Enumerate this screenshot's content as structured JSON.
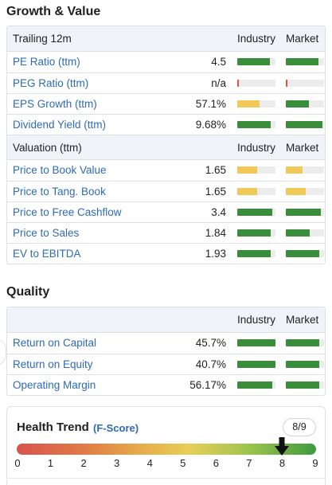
{
  "growth": {
    "title": "Growth & Value",
    "trailing": {
      "header": "Trailing 12m",
      "col_industry": "Industry",
      "col_market": "Market",
      "rows": [
        {
          "name": "PE Ratio (ttm)",
          "value": "4.5",
          "industry": 0.85,
          "market": 0.85,
          "industry_color": "#3a8d3a",
          "market_color": "#3a8d3a"
        },
        {
          "name": "PEG Ratio (ttm)",
          "value": "n/a",
          "industry": 0.05,
          "market": 0.05,
          "industry_color": "#d9534f",
          "market_color": "#d9534f"
        },
        {
          "name": "EPS Growth (ttm)",
          "value": "57.1%",
          "industry": 0.58,
          "market": 0.6,
          "industry_color": "#f1c959",
          "market_color": "#3a8d3a"
        },
        {
          "name": "Dividend Yield (ttm)",
          "value": "9.68%",
          "industry": 0.88,
          "market": 0.95,
          "industry_color": "#3a8d3a",
          "market_color": "#3a8d3a"
        }
      ]
    },
    "valuation": {
      "header": "Valuation (ttm)",
      "col_industry": "Industry",
      "col_market": "Market",
      "rows": [
        {
          "name": "Price to Book Value",
          "value": "1.65",
          "industry": 0.52,
          "market": 0.44,
          "industry_color": "#f1c959",
          "market_color": "#f1c959"
        },
        {
          "name": "Price to Tang. Book",
          "value": "1.65",
          "industry": 0.52,
          "market": 0.52,
          "industry_color": "#f1c959",
          "market_color": "#f1c959"
        },
        {
          "name": "Price to Free Cashflow",
          "value": "3.4",
          "industry": 0.92,
          "market": 0.92,
          "industry_color": "#3a8d3a",
          "market_color": "#3a8d3a"
        },
        {
          "name": "Price to Sales",
          "value": "1.84",
          "industry": 0.88,
          "market": 0.62,
          "industry_color": "#3a8d3a",
          "market_color": "#3a8d3a"
        },
        {
          "name": "EV to EBITDA",
          "value": "1.93",
          "industry": 0.88,
          "market": 0.88,
          "industry_color": "#3a8d3a",
          "market_color": "#3a8d3a"
        }
      ]
    }
  },
  "quality": {
    "title": "Quality",
    "col_industry": "Industry",
    "col_market": "Market",
    "rows": [
      {
        "name": "Return on Capital",
        "value": "45.7%",
        "industry": 1.0,
        "market": 0.88,
        "industry_color": "#3a8d3a",
        "market_color": "#3a8d3a"
      },
      {
        "name": "Return on Equity",
        "value": "40.7%",
        "industry": 1.0,
        "market": 0.88,
        "industry_color": "#3a8d3a",
        "market_color": "#3a8d3a"
      },
      {
        "name": "Operating Margin",
        "value": "56.17%",
        "industry": 0.92,
        "market": 0.88,
        "industry_color": "#3a8d3a",
        "market_color": "#3a8d3a"
      }
    ]
  },
  "health": {
    "title": "Health Trend",
    "subtitle": "(F-Score)",
    "score_label": "8/9",
    "score": 8,
    "max": 9,
    "ticks": [
      "0",
      "1",
      "2",
      "3",
      "4",
      "5",
      "6",
      "7",
      "8",
      "9"
    ]
  }
}
